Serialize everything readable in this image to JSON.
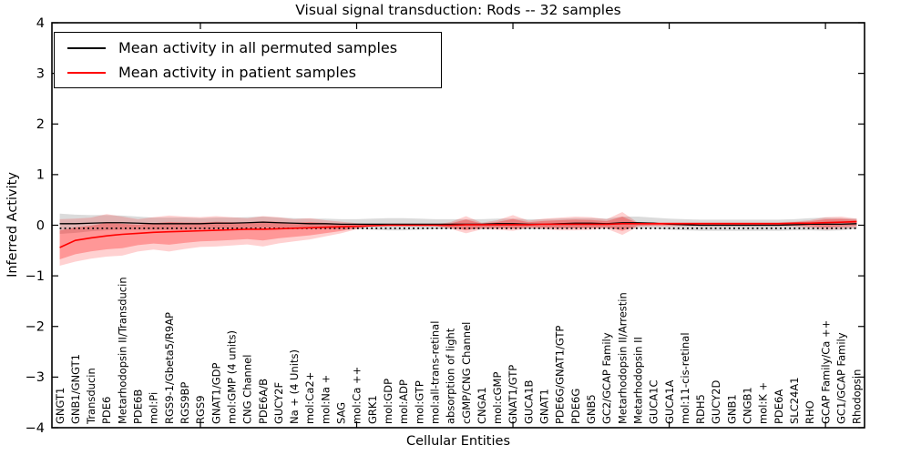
{
  "chart_data": {
    "type": "line",
    "title": "Visual signal transduction: Rods -- 32 samples",
    "xlabel": "Cellular Entities",
    "ylabel": "Inferred Activity",
    "ylim": [
      -4,
      4
    ],
    "ytick_values": [
      -4,
      -3,
      -2,
      -1,
      0,
      1,
      2,
      3,
      4
    ],
    "ytick_labels": [
      "−4",
      "−3",
      "−2",
      "−1",
      "0",
      "1",
      "2",
      "3",
      "4"
    ],
    "xtick_indices": [
      9,
      19,
      29,
      39,
      49
    ],
    "grid": false,
    "legend_position": "upper left",
    "legend": [
      {
        "label": "Mean activity in all permuted samples",
        "color": "#000000"
      },
      {
        "label": "Mean activity in patient samples",
        "color": "#ff0000"
      }
    ],
    "zero_line": {
      "style": "dotted",
      "color": "#000000",
      "value": 0
    },
    "colors": {
      "permuted_line": "#000000",
      "patient_line": "#ff0000",
      "permuted_band": "#999999",
      "patient_band": "#ff0000",
      "frame": "#000000"
    },
    "categories": [
      "GNGT1",
      "GNB1/GNGT1",
      "Transducin",
      "PDE6",
      "Metarhodopsin II/Transducin",
      "PDE6B",
      "mol:Pi",
      "RGS9-1/Gbeta5/R9AP",
      "RGS9BP",
      "RGS9",
      "GNAT1/GDP",
      "mol:GMP (4 units)",
      "CNG Channel",
      "PDE6A/B",
      "GUCY2F",
      "Na + (4 Units)",
      "mol:Ca2+",
      "mol:Na +",
      "SAG",
      "mol:Ca ++",
      "GRK1",
      "mol:GDP",
      "mol:ADP",
      "mol:GTP",
      "mol:all-trans-retinal",
      "absorption of light",
      "cGMP/CNG Channel",
      "CNGA1",
      "mol:cGMP",
      "GNAT1/GTP",
      "GUCA1B",
      "GNAT1",
      "PDE6G/GNAT1/GTP",
      "PDE6G",
      "GNB5",
      "GC2/GCAP Family",
      "Metarhodopsin II/Arrestin",
      "Metarhodopsin II",
      "GUCA1C",
      "GUCA1A",
      "mol:11-cis-retinal",
      "RDH5",
      "GUCY2D",
      "GNB1",
      "CNGB1",
      "mol:K +",
      "PDE6A",
      "SLC24A1",
      "RHO",
      "GCAP Family/Ca ++",
      "GC1/GCAP Family",
      "Rhodopsin"
    ],
    "series": [
      {
        "name": "Mean activity in all permuted samples",
        "values": [
          0.03,
          0.03,
          0.04,
          0.05,
          0.05,
          0.04,
          0.03,
          0.03,
          0.03,
          0.03,
          0.04,
          0.04,
          0.05,
          0.06,
          0.05,
          0.04,
          0.03,
          0.03,
          0.02,
          0.02,
          0.02,
          0.02,
          0.02,
          0.02,
          0.02,
          0.02,
          0.02,
          0.02,
          0.03,
          0.03,
          0.02,
          0.02,
          0.03,
          0.04,
          0.04,
          0.03,
          0.05,
          0.05,
          0.04,
          0.02,
          0.01,
          0.0,
          0.0,
          0.0,
          0.0,
          0.0,
          0.0,
          0.01,
          0.02,
          0.02,
          0.02,
          0.03
        ],
        "band_half_width": [
          0.2,
          0.18,
          0.16,
          0.15,
          0.14,
          0.13,
          0.12,
          0.12,
          0.12,
          0.11,
          0.11,
          0.11,
          0.11,
          0.11,
          0.1,
          0.1,
          0.1,
          0.1,
          0.1,
          0.1,
          0.11,
          0.12,
          0.12,
          0.11,
          0.1,
          0.1,
          0.1,
          0.1,
          0.1,
          0.1,
          0.1,
          0.1,
          0.1,
          0.1,
          0.1,
          0.1,
          0.12,
          0.12,
          0.11,
          0.11,
          0.11,
          0.11,
          0.11,
          0.11,
          0.11,
          0.11,
          0.11,
          0.11,
          0.12,
          0.13,
          0.12,
          0.1
        ]
      },
      {
        "name": "Mean activity in patient samples",
        "values": [
          -0.44,
          -0.3,
          -0.25,
          -0.21,
          -0.18,
          -0.16,
          -0.14,
          -0.13,
          -0.12,
          -0.11,
          -0.1,
          -0.09,
          -0.08,
          -0.08,
          -0.07,
          -0.06,
          -0.05,
          -0.04,
          -0.03,
          -0.02,
          -0.01,
          0.0,
          0.0,
          0.0,
          0.0,
          0.0,
          0.01,
          0.01,
          0.01,
          0.01,
          0.01,
          0.02,
          0.02,
          0.02,
          0.02,
          0.02,
          0.03,
          0.03,
          0.03,
          0.03,
          0.03,
          0.03,
          0.03,
          0.03,
          0.03,
          0.03,
          0.03,
          0.04,
          0.04,
          0.05,
          0.06,
          0.07
        ],
        "band_upper": [
          0.12,
          0.13,
          0.15,
          0.22,
          0.17,
          0.12,
          0.16,
          0.19,
          0.17,
          0.16,
          0.18,
          0.16,
          0.14,
          0.18,
          0.16,
          0.12,
          0.14,
          0.1,
          0.07,
          0.04,
          0.015,
          0.015,
          0.015,
          0.015,
          0.015,
          0.06,
          0.18,
          0.05,
          0.1,
          0.2,
          0.09,
          0.13,
          0.15,
          0.17,
          0.16,
          0.12,
          0.26,
          0.05,
          0.06,
          0.06,
          0.06,
          0.06,
          0.06,
          0.06,
          0.06,
          0.06,
          0.06,
          0.07,
          0.1,
          0.16,
          0.17,
          0.13
        ],
        "band_lower": [
          -0.8,
          -0.72,
          -0.66,
          -0.62,
          -0.6,
          -0.52,
          -0.48,
          -0.52,
          -0.47,
          -0.43,
          -0.42,
          -0.4,
          -0.38,
          -0.42,
          -0.36,
          -0.32,
          -0.28,
          -0.22,
          -0.16,
          -0.08,
          -0.02,
          -0.02,
          -0.02,
          -0.02,
          -0.02,
          -0.07,
          -0.16,
          -0.08,
          -0.09,
          -0.11,
          -0.06,
          -0.08,
          -0.1,
          -0.1,
          -0.09,
          -0.07,
          -0.19,
          -0.03,
          -0.02,
          -0.02,
          -0.02,
          -0.02,
          -0.02,
          -0.02,
          -0.02,
          -0.02,
          -0.02,
          -0.03,
          -0.05,
          -0.09,
          -0.07,
          -0.05
        ]
      }
    ]
  }
}
